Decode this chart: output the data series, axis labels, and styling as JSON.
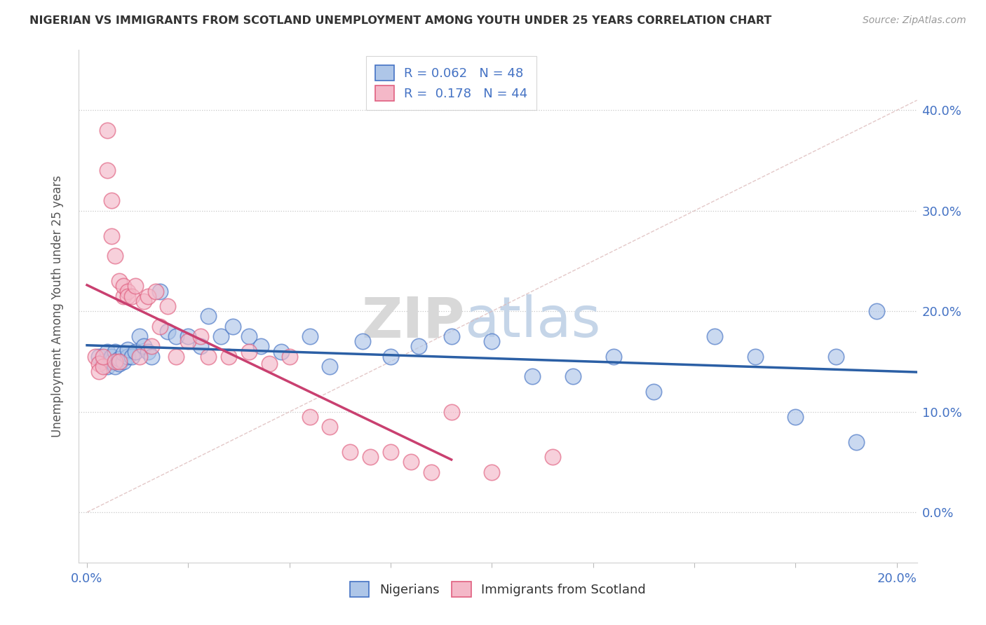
{
  "title": "NIGERIAN VS IMMIGRANTS FROM SCOTLAND UNEMPLOYMENT AMONG YOUTH UNDER 25 YEARS CORRELATION CHART",
  "source": "Source: ZipAtlas.com",
  "ylabel": "Unemployment Among Youth under 25 years",
  "legend_nigerians": "Nigerians",
  "legend_scotland": "Immigrants from Scotland",
  "r_nigerians": 0.062,
  "n_nigerians": 48,
  "r_scotland": 0.178,
  "n_scotland": 44,
  "blue_color": "#aec6e8",
  "pink_color": "#f4b8c8",
  "blue_edge_color": "#4472c4",
  "pink_edge_color": "#e06080",
  "blue_line_color": "#2b5fa5",
  "pink_line_color": "#c94070",
  "diagonal_color": "#ddbbbb",
  "nigerians_x": [
    0.003,
    0.004,
    0.005,
    0.005,
    0.006,
    0.006,
    0.007,
    0.007,
    0.008,
    0.008,
    0.009,
    0.009,
    0.01,
    0.01,
    0.011,
    0.012,
    0.013,
    0.014,
    0.015,
    0.016,
    0.018,
    0.02,
    0.022,
    0.025,
    0.028,
    0.03,
    0.033,
    0.036,
    0.04,
    0.043,
    0.048,
    0.055,
    0.06,
    0.068,
    0.075,
    0.082,
    0.09,
    0.1,
    0.11,
    0.12,
    0.13,
    0.14,
    0.155,
    0.165,
    0.175,
    0.185,
    0.19,
    0.195
  ],
  "nigerians_y": [
    0.155,
    0.15,
    0.145,
    0.16,
    0.15,
    0.155,
    0.145,
    0.16,
    0.148,
    0.153,
    0.15,
    0.158,
    0.155,
    0.162,
    0.155,
    0.16,
    0.175,
    0.165,
    0.16,
    0.155,
    0.22,
    0.18,
    0.175,
    0.175,
    0.165,
    0.195,
    0.175,
    0.185,
    0.175,
    0.165,
    0.16,
    0.175,
    0.145,
    0.17,
    0.155,
    0.165,
    0.175,
    0.17,
    0.135,
    0.135,
    0.155,
    0.12,
    0.175,
    0.155,
    0.095,
    0.155,
    0.07,
    0.2
  ],
  "scotland_x": [
    0.002,
    0.003,
    0.003,
    0.004,
    0.004,
    0.005,
    0.005,
    0.006,
    0.006,
    0.007,
    0.007,
    0.008,
    0.008,
    0.009,
    0.009,
    0.01,
    0.01,
    0.011,
    0.012,
    0.013,
    0.014,
    0.015,
    0.016,
    0.017,
    0.018,
    0.02,
    0.022,
    0.025,
    0.028,
    0.03,
    0.035,
    0.04,
    0.045,
    0.05,
    0.055,
    0.06,
    0.065,
    0.07,
    0.075,
    0.08,
    0.085,
    0.09,
    0.1,
    0.115
  ],
  "scotland_y": [
    0.155,
    0.148,
    0.14,
    0.145,
    0.155,
    0.38,
    0.34,
    0.31,
    0.275,
    0.255,
    0.15,
    0.23,
    0.15,
    0.215,
    0.225,
    0.22,
    0.215,
    0.215,
    0.225,
    0.155,
    0.21,
    0.215,
    0.165,
    0.22,
    0.185,
    0.205,
    0.155,
    0.17,
    0.175,
    0.155,
    0.155,
    0.16,
    0.148,
    0.155,
    0.095,
    0.085,
    0.06,
    0.055,
    0.06,
    0.05,
    0.04,
    0.1,
    0.04,
    0.055
  ],
  "xlim": [
    -0.002,
    0.205
  ],
  "ylim": [
    -0.05,
    0.46
  ],
  "yticks": [
    0.0,
    0.1,
    0.2,
    0.3,
    0.4
  ],
  "ytick_labels": [
    "0.0%",
    "10.0%",
    "20.0%",
    "30.0%",
    "40.0%"
  ],
  "xtick_show": [
    0.0,
    0.2
  ],
  "watermark_zip": "ZIP",
  "watermark_atlas": "atlas"
}
